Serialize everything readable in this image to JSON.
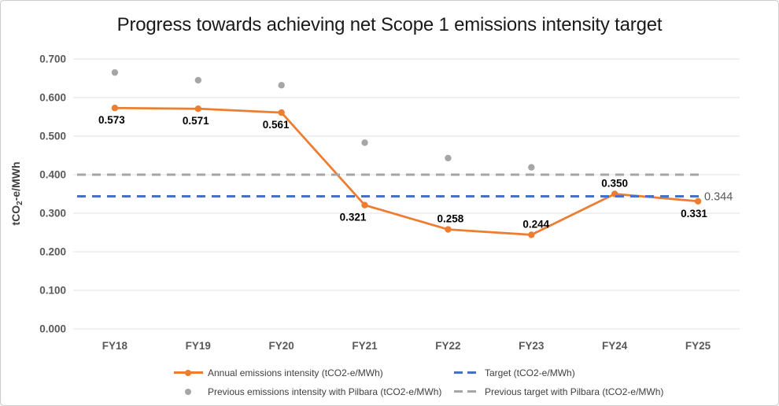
{
  "chart_data": {
    "type": "line",
    "title": "Progress towards achieving net Scope 1 emissions intensity target",
    "xlabel": "",
    "ylabel": "tCO2-e/MWh",
    "ylabel_parts": {
      "pre": "tCO",
      "sub": "2",
      "post": "-e/MWh"
    },
    "categories": [
      "FY18",
      "FY19",
      "FY20",
      "FY21",
      "FY22",
      "FY23",
      "FY24",
      "FY25"
    ],
    "y_axis": {
      "min": 0.0,
      "max": 0.7,
      "step": 0.1,
      "tick_labels": [
        "0.000",
        "0.100",
        "0.200",
        "0.300",
        "0.400",
        "0.500",
        "0.600",
        "0.700"
      ],
      "grid": true
    },
    "legend_position": "bottom",
    "colors": {
      "annual": "#ED7D31",
      "target": "#4472C4",
      "previous": "#A6A6A6",
      "gridline": "#E1E1E1",
      "axis_text": "#595959",
      "label_text": "#000000",
      "end_label_text": "#595959",
      "title_text": "#1A1A1A",
      "legend_text": "#3F3F3F"
    },
    "series": [
      {
        "name": "Annual emissions intensity (tCO2-e/MWh)",
        "kind": "line",
        "color_key": "annual",
        "values": [
          0.573,
          0.571,
          0.561,
          0.321,
          0.258,
          0.244,
          0.35,
          0.331
        ],
        "point_labels": [
          "0.573",
          "0.571",
          "0.561",
          "0.321",
          "0.258",
          "0.244",
          "0.350",
          "0.331"
        ],
        "label_positions": [
          "below",
          "below",
          "below",
          "below",
          "above",
          "above",
          "above",
          "below"
        ],
        "label_dx": [
          -4,
          -3,
          -7,
          -15,
          3,
          6,
          0,
          -5
        ]
      },
      {
        "name": "Previous emissions intensity with Pilbara (tCO2-e/MWh)",
        "kind": "scatter",
        "color_key": "previous",
        "values": [
          0.665,
          0.645,
          0.632,
          0.483,
          0.443,
          0.419,
          null,
          null
        ]
      },
      {
        "name": "Target (tCO2-e/MWh)",
        "kind": "dashed-line",
        "color_key": "target",
        "value": 0.344,
        "end_label": "0.344"
      },
      {
        "name": "Previous target with Pilbara (tCO2-e/MWh)",
        "kind": "dashed-line",
        "color_key": "previous",
        "value": 0.4,
        "end_label": ""
      }
    ],
    "legend": {
      "items": [
        {
          "label": "Annual emissions intensity (tCO2-e/MWh)",
          "marker": "line-dot",
          "color_key": "annual"
        },
        {
          "label": "Target (tCO2-e/MWh)",
          "marker": "dashes",
          "color_key": "target"
        },
        {
          "label": "Previous emissions intensity with Pilbara (tCO2-e/MWh)",
          "marker": "dot",
          "color_key": "previous"
        },
        {
          "label": "Previous target with Pilbara (tCO2-e/MWh)",
          "marker": "dashes",
          "color_key": "previous"
        }
      ]
    }
  }
}
